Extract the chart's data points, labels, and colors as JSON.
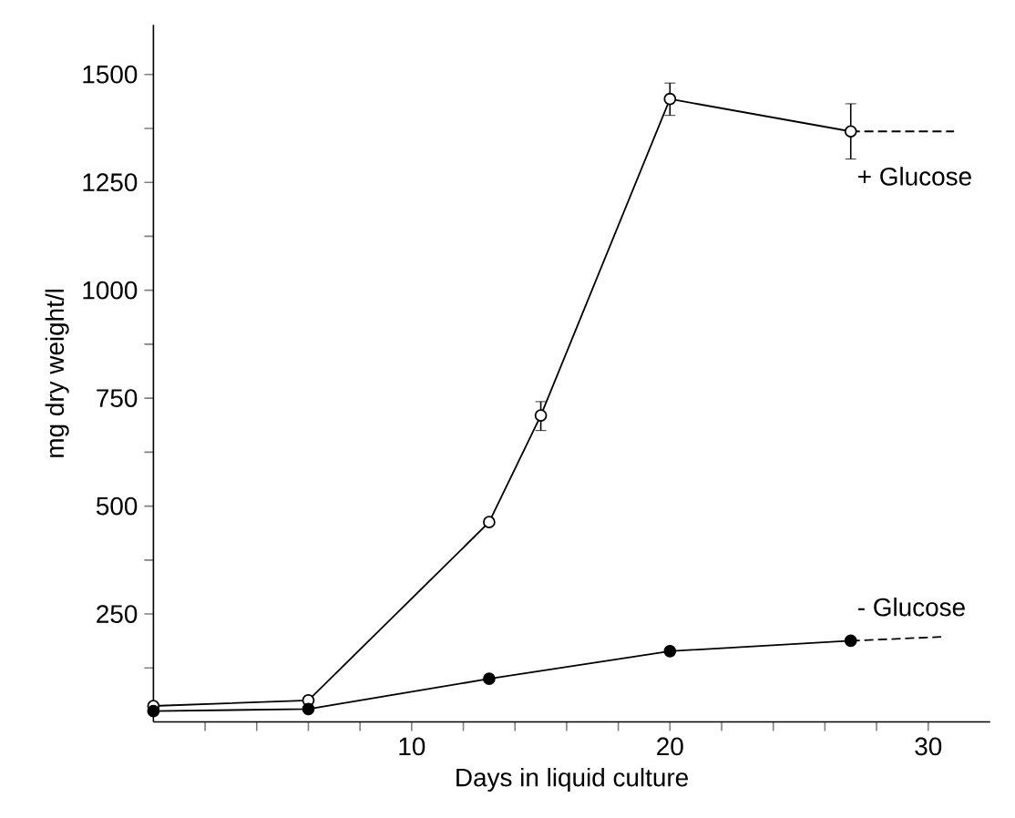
{
  "chart_data": {
    "type": "line",
    "xlabel": "Days in liquid culture",
    "ylabel": "mg dry weight/l",
    "xlim": [
      0,
      32.4
    ],
    "ylim": [
      0,
      1615
    ],
    "xticks": [
      {
        "value": 2,
        "label": null
      },
      {
        "value": 4,
        "label": null
      },
      {
        "value": 6,
        "label": null
      },
      {
        "value": 8,
        "label": null
      },
      10,
      {
        "value": 12,
        "label": null
      },
      {
        "value": 14,
        "label": null
      },
      {
        "value": 16,
        "label": null
      },
      {
        "value": 18,
        "label": null
      },
      20,
      {
        "value": 22,
        "label": null
      },
      {
        "value": 24,
        "label": null
      },
      {
        "value": 26,
        "label": null
      },
      {
        "value": 28,
        "label": null
      },
      30
    ],
    "yticks": [
      {
        "value": 125,
        "label": null
      },
      250,
      {
        "value": 375,
        "label": null
      },
      500,
      {
        "value": 625,
        "label": null
      },
      750,
      {
        "value": 875,
        "label": null
      },
      1000,
      {
        "value": 1125,
        "label": null
      },
      1250,
      {
        "value": 1375,
        "label": null
      },
      1500
    ],
    "grid": false,
    "marker": "circle",
    "line_style": "solid",
    "series": [
      {
        "name": "+ Glucose",
        "color": "#000000",
        "x": [
          0,
          6,
          13,
          15,
          20,
          27
        ],
        "values": [
          37,
          50,
          463,
          710,
          1443,
          1368
        ],
        "errors": [
          null,
          null,
          null,
          [
            675,
            742
          ],
          [
            1405,
            1480
          ],
          [
            1304,
            1432
          ]
        ]
      },
      {
        "name": "- Glucose",
        "color": "#000000",
        "x": [
          0,
          6,
          13,
          20,
          27
        ],
        "values": [
          25,
          30,
          100,
          164,
          188
        ]
      },
      {
        "type": "line",
        "color": "#000000",
        "marker": "none",
        "line_style": "dashed",
        "x": [
          27,
          31
        ],
        "values": [
          1368,
          1368
        ]
      },
      {
        "type": "line",
        "color": "#000000",
        "marker": "none",
        "line_style": "dashed",
        "x": [
          27,
          30.5
        ],
        "values": [
          188,
          197
        ]
      }
    ]
  }
}
